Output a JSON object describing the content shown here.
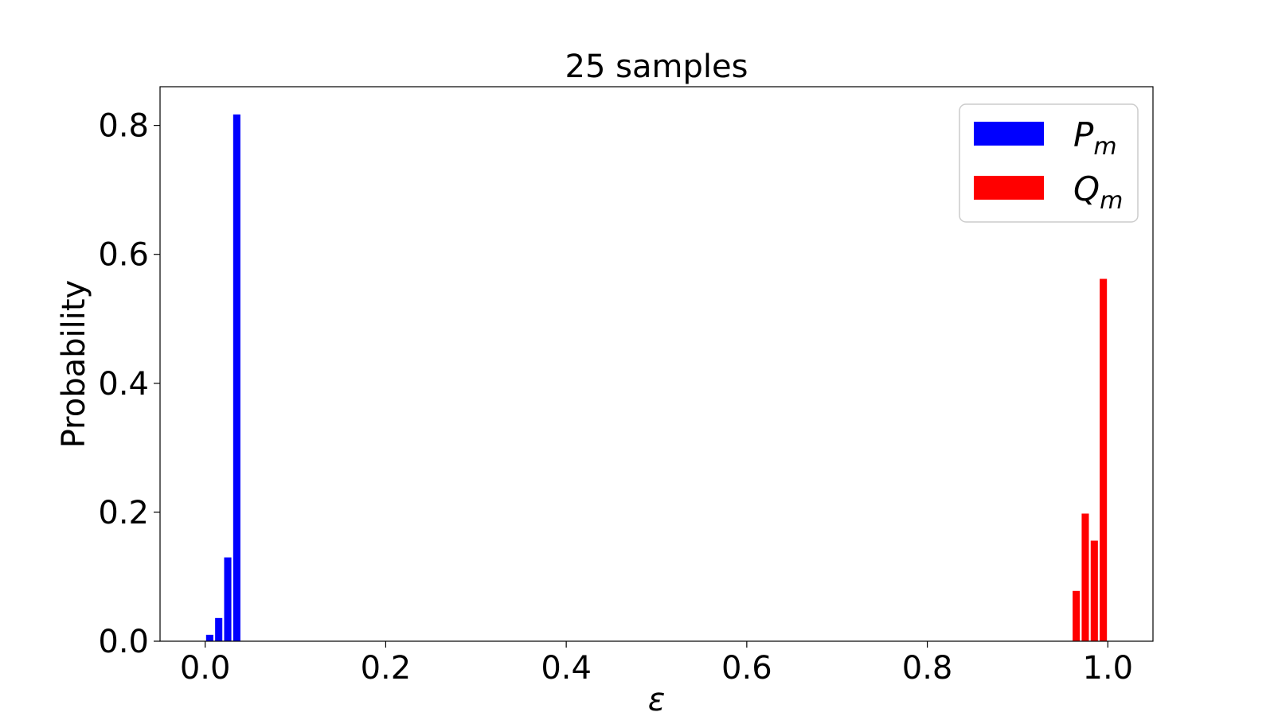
{
  "chart_data": {
    "type": "bar",
    "title": "25 samples",
    "xlabel": "ε",
    "ylabel": "Probability",
    "xlim": [
      -0.05,
      1.05
    ],
    "ylim": [
      0,
      0.86
    ],
    "xticks": [
      0.0,
      0.2,
      0.4,
      0.6,
      0.8,
      1.0
    ],
    "xtick_labels": [
      "0.0",
      "0.2",
      "0.4",
      "0.6",
      "0.8",
      "1.0"
    ],
    "yticks": [
      0.0,
      0.2,
      0.4,
      0.6,
      0.8
    ],
    "ytick_labels": [
      "0.0",
      "0.2",
      "0.4",
      "0.6",
      "0.8"
    ],
    "bar_width": 0.008,
    "grid": false,
    "legend_placement": "top-right",
    "series": [
      {
        "name": "P",
        "subscript": "m",
        "color": "#0000ff",
        "x": [
          0.005,
          0.015,
          0.025,
          0.035
        ],
        "values": [
          0.01,
          0.036,
          0.13,
          0.817
        ]
      },
      {
        "name": "Q",
        "subscript": "m",
        "color": "#ff0000",
        "x": [
          0.965,
          0.975,
          0.985,
          0.995
        ],
        "values": [
          0.078,
          0.198,
          0.156,
          0.562
        ]
      }
    ]
  }
}
